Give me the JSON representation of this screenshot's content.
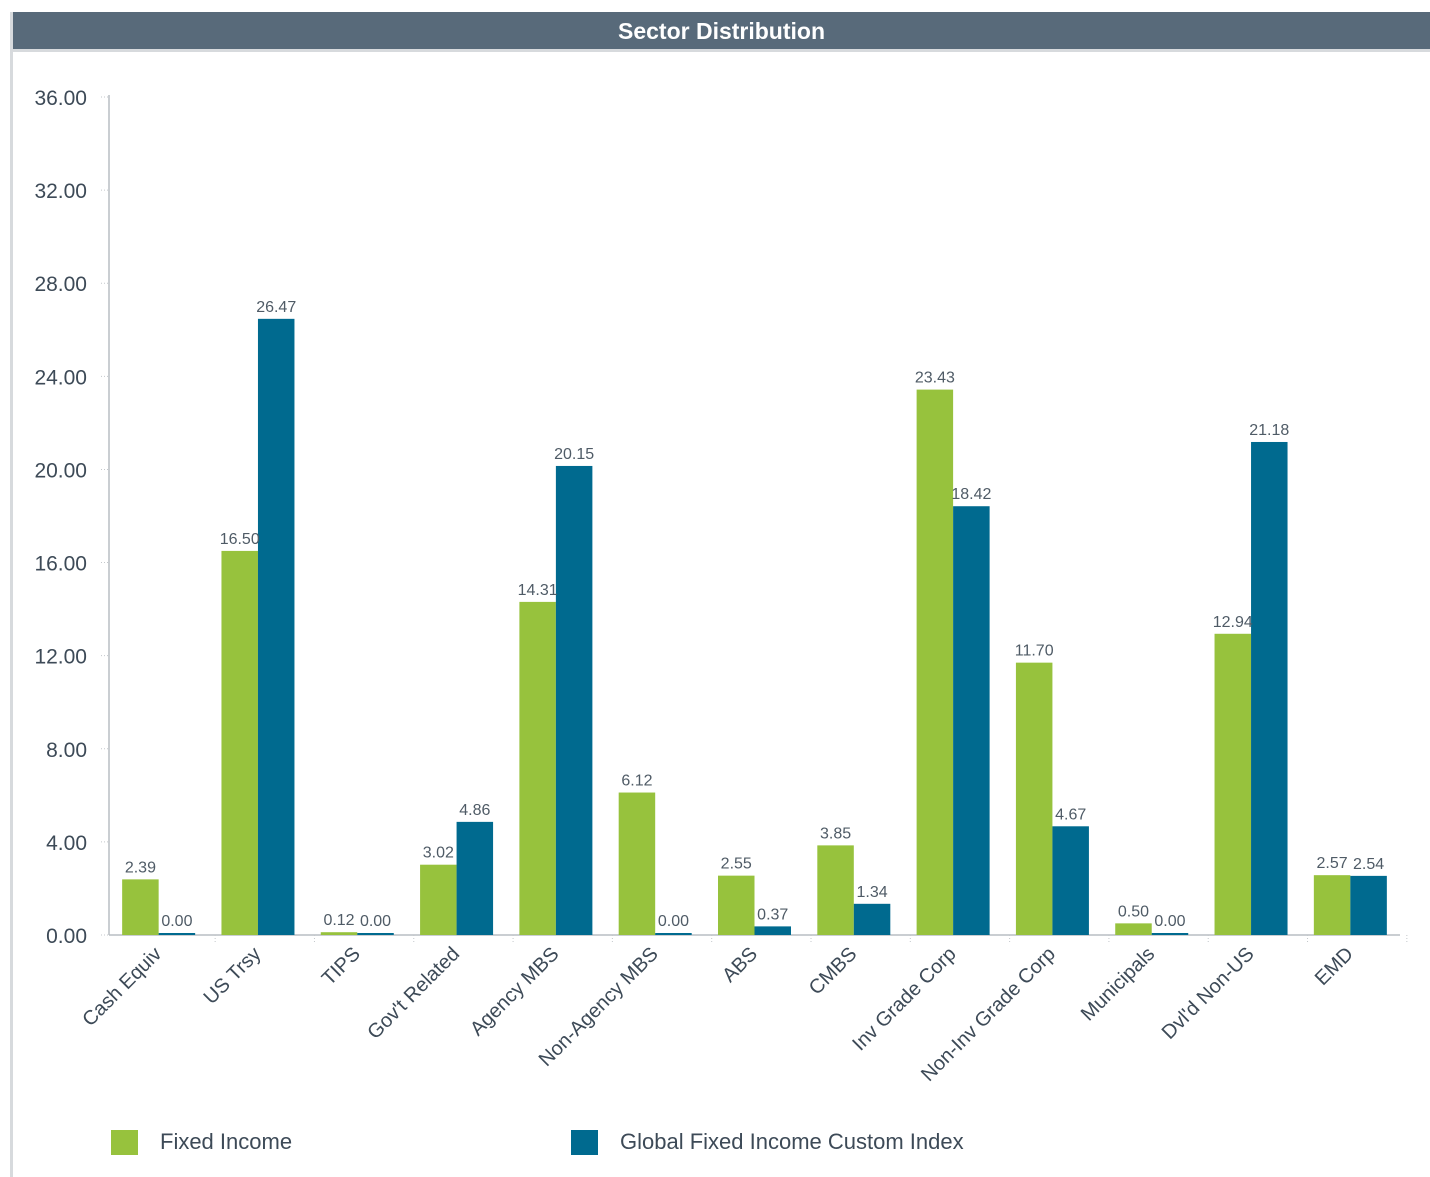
{
  "panel": {
    "title": "Sector Distribution"
  },
  "colors": {
    "header_bg": "#586a7a",
    "series_1": "#97c23d",
    "series_2": "#006a8f",
    "text": "#3d4a57"
  },
  "chart_data": {
    "type": "bar",
    "title": "Sector Distribution",
    "xlabel": "",
    "ylabel": "",
    "ylim": [
      0,
      36
    ],
    "yticks": [
      "0.00",
      "4.00",
      "8.00",
      "12.00",
      "16.00",
      "20.00",
      "24.00",
      "28.00",
      "32.00",
      "36.00"
    ],
    "grid": false,
    "legend_position": "bottom",
    "categories": [
      "Cash Equiv",
      "US Trsy",
      "TIPS",
      "Gov't Related",
      "Agency MBS",
      "Non-Agency MBS",
      "ABS",
      "CMBS",
      "Inv Grade Corp",
      "Non-Inv Grade Corp",
      "Municipals",
      "Dvl'd Non-US",
      "EMD"
    ],
    "series": [
      {
        "name": "Fixed Income",
        "color": "#97c23d",
        "values": [
          2.39,
          16.5,
          0.12,
          3.02,
          14.31,
          6.12,
          2.55,
          3.85,
          23.43,
          11.7,
          0.5,
          12.94,
          2.57
        ],
        "labels": [
          "2.39",
          "16.50",
          "0.12",
          "3.02",
          "14.31",
          "6.12",
          "2.55",
          "3.85",
          "23.43",
          "11.70",
          "0.50",
          "12.94",
          "2.57"
        ]
      },
      {
        "name": "Global Fixed Income Custom Index",
        "color": "#006a8f",
        "values": [
          0.0,
          26.47,
          0.0,
          4.86,
          20.15,
          0.0,
          0.37,
          1.34,
          18.42,
          4.67,
          0.0,
          21.18,
          2.54
        ],
        "labels": [
          "0.00",
          "26.47",
          "0.00",
          "4.86",
          "20.15",
          "0.00",
          "0.37",
          "1.34",
          "18.42",
          "4.67",
          "0.00",
          "21.18",
          "2.54"
        ]
      }
    ]
  }
}
